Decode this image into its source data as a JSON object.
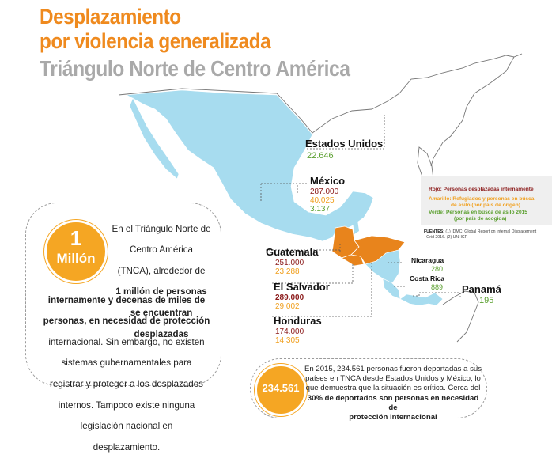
{
  "title": {
    "line1": "Desplazamiento",
    "line2": "por violencia generalizada",
    "line3": "Triángulo Norte de Centro América"
  },
  "countries": {
    "usa": {
      "name": "Estados Unidos",
      "green": "22.646"
    },
    "mexico": {
      "name": "México",
      "red": "287.000",
      "yellow": "40.025",
      "green": "3.137"
    },
    "guatemala": {
      "name": "Guatemala",
      "red": "251.000",
      "yellow": "23.288"
    },
    "el_salvador": {
      "name": "El Salvador",
      "red": "289.000",
      "yellow": "29.002"
    },
    "honduras": {
      "name": "Honduras",
      "red": "174.000",
      "yellow": "14.305"
    },
    "nicaragua": {
      "name": "Nicaragua",
      "green": "280"
    },
    "costa_rica": {
      "name": "Costa Rica",
      "green": "889"
    },
    "panama": {
      "name": "Panamá",
      "green": "195"
    }
  },
  "legend": {
    "red": "Rojo: Personas desplazadas internamente",
    "yellow_1": "Amarillo: Refugiados y personas en búsca",
    "yellow_2": "de asilo (por país de origen)",
    "green_1": "Verde: Personas en búsca de asilo 2015",
    "green_2": "(por país de acogida)"
  },
  "sources": {
    "label": "FUENTES:",
    "line1": "(1) IDMC: Global Report on Internal Displacement",
    "line2": "- Grid 2016. (2) UNHCR"
  },
  "million_box": {
    "number": "1",
    "unit": "Millón",
    "lines": [
      "En el Triángulo Norte de",
      "Centro América",
      "(TNCA), alrededor de",
      "1 millón de personas",
      "se encuentran",
      "desplazadas",
      "internamente y decenas de miles de",
      "personas, en necesidad de protección",
      "internacional. Sin embargo, no existen",
      "sistemas gubernamentales para",
      "registrar y proteger a los desplazados",
      "internos. Tampoco existe ninguna",
      "legislación nacional en",
      "desplazamiento."
    ]
  },
  "deported_box": {
    "number": "234.561",
    "lines": [
      "En 2015, 234.561 personas fueron deportadas a sus",
      "países en TNCA desde Estados Unidos y México, lo",
      "que demuestra que la situación es crítica. Cerca del",
      "30% de deportados son personas en necesidad de",
      "protección internacional"
    ]
  },
  "colors": {
    "orange": "#ef8a1e",
    "map_blue": "#a7dcef",
    "tnca_orange": "#e8841c",
    "red_value": "#8b1a1a",
    "yellow_value": "#f0a020",
    "green_value": "#5a9f2e"
  }
}
